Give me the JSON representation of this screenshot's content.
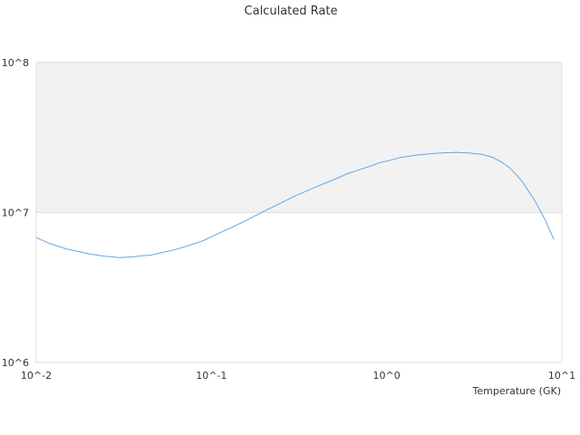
{
  "chart_data": {
    "type": "line",
    "title": "Calculated Rate",
    "xlabel": "Temperature (GK)",
    "ylabel": "",
    "xscale": "log",
    "yscale": "log",
    "xlim": [
      0.01,
      10
    ],
    "ylim": [
      1000000,
      100000000
    ],
    "x_ticks": [
      "10^-2",
      "10^-1",
      "10^0",
      "10^1"
    ],
    "y_ticks": [
      "10^6",
      "10^7",
      "10^8"
    ],
    "grid": true,
    "legend": "none",
    "colors": {
      "line": "#5fa8e8",
      "band": "#f2f2f2",
      "grid": "#dddddd",
      "text": "#333333"
    },
    "series": [
      {
        "x": [
          0.01,
          0.012,
          0.015,
          0.02,
          0.025,
          0.03,
          0.035,
          0.04,
          0.045,
          0.05,
          0.06,
          0.07,
          0.08,
          0.09,
          0.1,
          0.12,
          0.15,
          0.2,
          0.25,
          0.3,
          0.4,
          0.5,
          0.6,
          0.7,
          0.8,
          0.9,
          1.0,
          1.2,
          1.5,
          2.0,
          2.5,
          3.0,
          3.5,
          4.0,
          4.5,
          5.0,
          5.5,
          6.0,
          7.0,
          8.0,
          9.0
        ],
        "y": [
          6800000,
          6200000,
          5700000,
          5300000,
          5100000,
          5000000,
          5060000,
          5150000,
          5200000,
          5350000,
          5600000,
          5900000,
          6200000,
          6500000,
          6900000,
          7600000,
          8600000,
          10200000,
          11600000,
          12900000,
          14900000,
          16600000,
          18200000,
          19300000,
          20300000,
          21400000,
          22000000,
          23300000,
          24200000,
          24900000,
          25200000,
          24900000,
          24400000,
          23400000,
          21800000,
          20000000,
          17900000,
          15800000,
          12000000,
          9000000,
          6600000
        ]
      }
    ]
  }
}
